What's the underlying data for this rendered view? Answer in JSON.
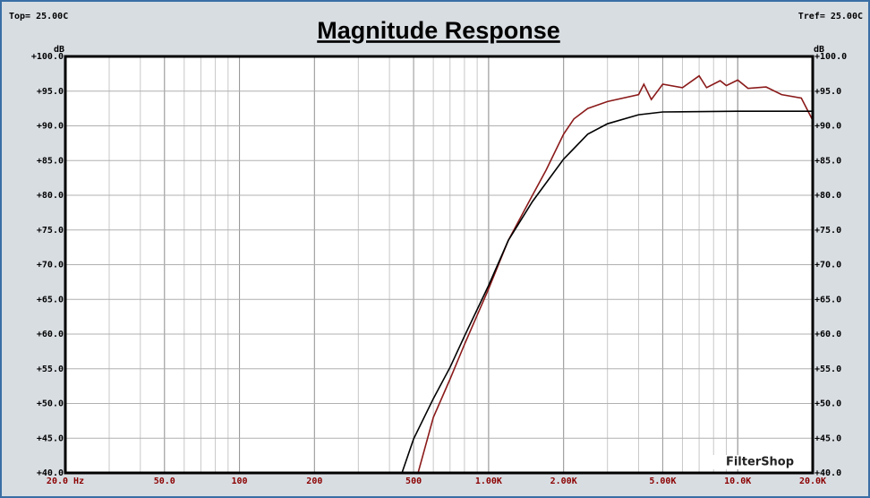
{
  "header": {
    "top": "Top= 25.00C",
    "tref": "Tref= 25.00C"
  },
  "watermark": "FilterShop",
  "chart_data": {
    "type": "line",
    "title": "Magnitude Response",
    "y_unit_left": "dB",
    "y_unit_right": "dB",
    "xscale": "log",
    "grid": true,
    "xlim": [
      20,
      20000
    ],
    "ylim": [
      40,
      100
    ],
    "xticks": [
      {
        "value": 20,
        "label": "20.0 Hz"
      },
      {
        "value": 50,
        "label": "50.0"
      },
      100,
      200,
      500,
      {
        "value": 1000,
        "label": "1.00K"
      },
      {
        "value": 2000,
        "label": "2.00K"
      },
      {
        "value": 5000,
        "label": "5.00K"
      },
      {
        "value": 10000,
        "label": "10.0K"
      },
      {
        "value": 20000,
        "label": "20.0K"
      }
    ],
    "yticks": [
      {
        "value": 40,
        "label": "+40.0"
      },
      {
        "value": 45,
        "label": "+45.0"
      },
      {
        "value": 50,
        "label": "+50.0"
      },
      {
        "value": 55,
        "label": "+55.0"
      },
      {
        "value": 60,
        "label": "+60.0"
      },
      {
        "value": 65,
        "label": "+65.0"
      },
      {
        "value": 70,
        "label": "+70.0"
      },
      {
        "value": 75,
        "label": "+75.0"
      },
      {
        "value": 80,
        "label": "+80.0"
      },
      {
        "value": 85,
        "label": "+85.0"
      },
      {
        "value": 90,
        "label": "+90.0"
      },
      {
        "value": 95,
        "label": "+95.0"
      },
      {
        "value": 100,
        "label": "+100.0"
      }
    ],
    "series": [
      {
        "color": "#8b1a1a",
        "x": [
          20,
          521,
          600,
          700,
          800,
          1000,
          1200,
          1500,
          1700,
          2000,
          2200,
          2500,
          3000,
          4000,
          4200,
          4500,
          5000,
          6000,
          7000,
          7500,
          8500,
          9000,
          10000,
          11000,
          13000,
          15000,
          18000,
          20000
        ],
        "values": [
          40,
          40,
          48,
          53.5,
          58.5,
          66.5,
          73.5,
          80,
          83.6,
          88.8,
          91,
          92.5,
          93.5,
          94.5,
          96,
          93.8,
          96,
          95.5,
          97.2,
          95.5,
          96.5,
          95.8,
          96.6,
          95.4,
          95.6,
          94.5,
          94,
          90.8
        ]
      },
      {
        "color": "#000000",
        "x": [
          20,
          449,
          500,
          600,
          700,
          800,
          1000,
          1200,
          1500,
          2000,
          2500,
          3000,
          4000,
          5000,
          10000,
          20000
        ],
        "values": [
          40,
          40,
          44.9,
          50.7,
          55.2,
          59.7,
          67,
          73.5,
          79.1,
          85.2,
          88.8,
          90.3,
          91.6,
          92,
          92.1,
          92.1
        ]
      }
    ]
  }
}
